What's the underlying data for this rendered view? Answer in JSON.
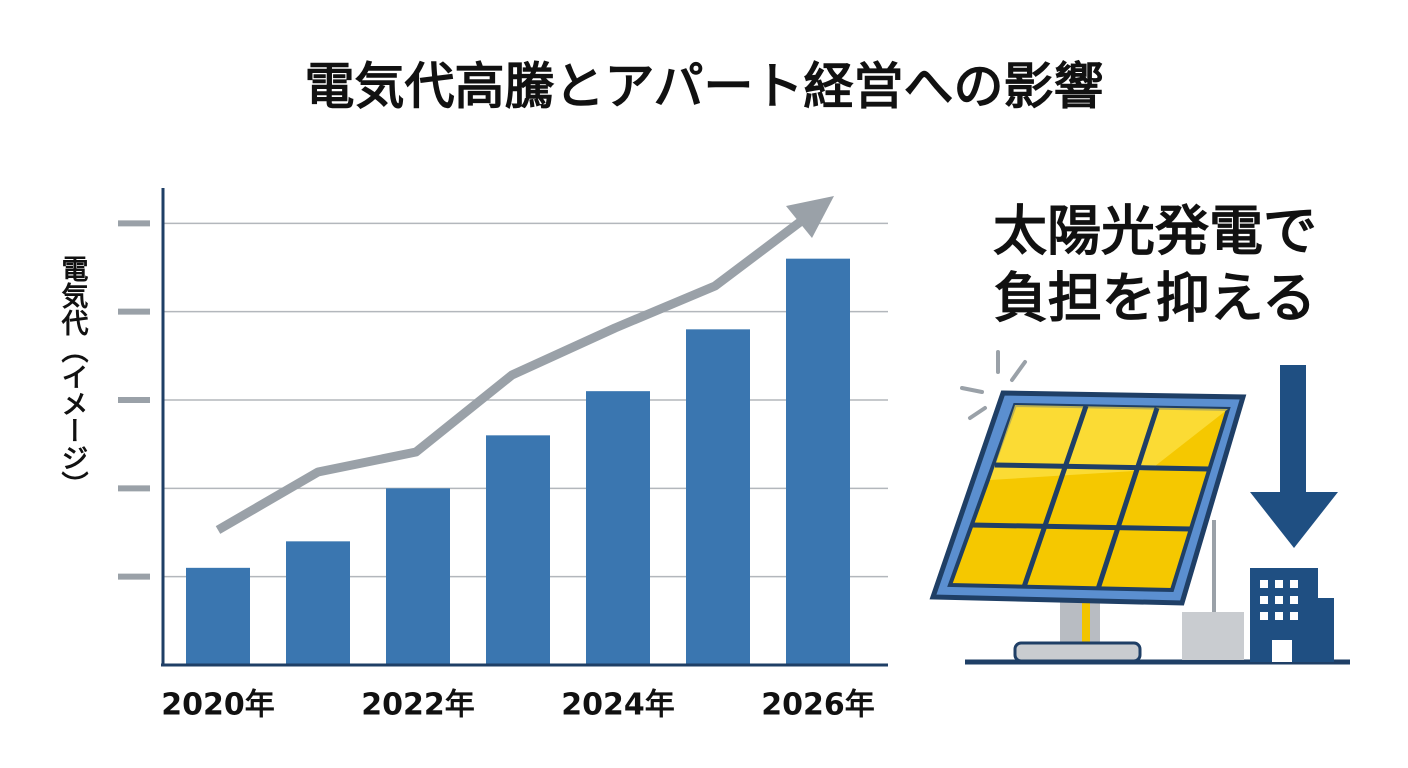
{
  "chart_data": {
    "type": "bar",
    "title": "電気代高騰とアパート経営への影響",
    "y_label": "電気代（イメージ）",
    "side_text": [
      "太陽光発電で",
      "負担を抑える"
    ],
    "categories": [
      "2020年",
      null,
      "2022年",
      null,
      "2024年",
      null,
      "2026年"
    ],
    "values": [
      1.1,
      1.4,
      2.0,
      2.6,
      3.1,
      3.8,
      4.6
    ],
    "color": "#3a76b0",
    "ylim": [
      0,
      5.4
    ],
    "yticks": [
      1,
      2,
      3,
      4,
      5
    ],
    "grid": true
  }
}
